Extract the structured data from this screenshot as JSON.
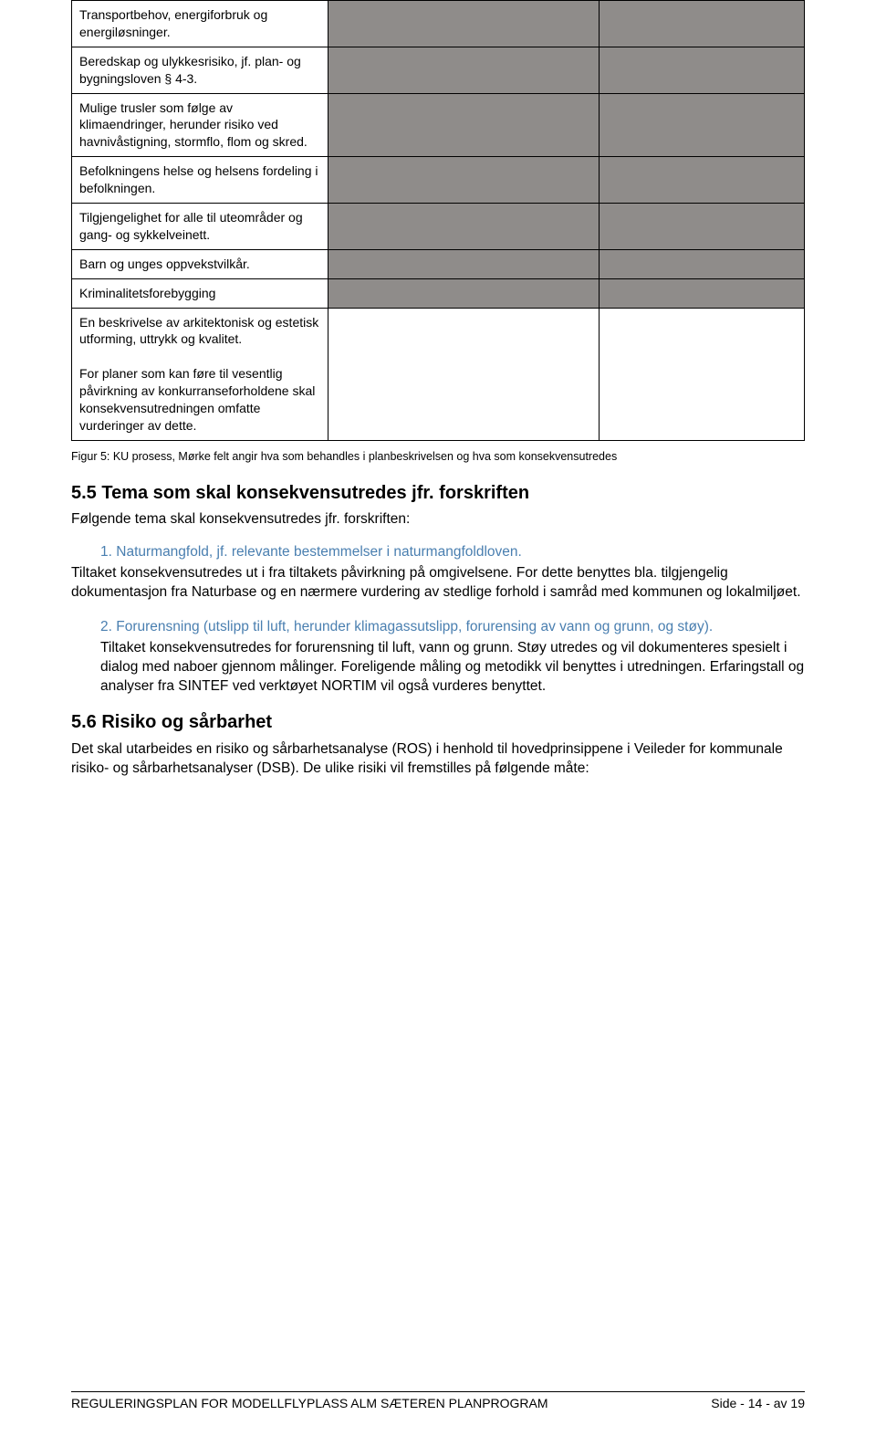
{
  "table": {
    "rows": [
      {
        "col1": "Transportbehov, energiforbruk og energiløsninger.",
        "shaded": true
      },
      {
        "col1": "Beredskap og ulykkesrisiko, jf. plan- og bygningsloven § 4-3.",
        "shaded": true
      },
      {
        "col1": "Mulige trusler som følge av klimaendringer, herunder risiko ved havnivåstigning, stormflo, flom og skred.",
        "shaded": true
      },
      {
        "col1": "Befolkningens helse og helsens fordeling i befolkningen.",
        "shaded": true
      },
      {
        "col1": "Tilgjengelighet for alle til uteområder og gang- og sykkelveinett.",
        "shaded": true
      },
      {
        "col1": "Barn og unges oppvekstvilkår.",
        "shaded": true
      },
      {
        "col1": "Kriminalitetsforebygging",
        "shaded": true
      },
      {
        "col1": "En beskrivelse av arkitektonisk og estetisk utforming, uttrykk og kvalitet.\n\nFor planer som kan føre til vesentlig påvirkning av konkurranseforholdene skal konsekvensutredningen omfatte vurderinger av dette.",
        "shaded": false
      }
    ]
  },
  "caption": "Figur 5: KU prosess, Mørke felt angir hva som behandles i planbeskrivelsen og hva som konsekvensutredes",
  "section55": {
    "heading": "5.5 Tema som skal konsekvensutredes jfr. forskriften",
    "intro": "Følgende tema skal konsekvensutredes jfr. forskriften:",
    "item1_num": "1.",
    "item1_title": "Naturmangfold, jf. relevante bestemmelser i naturmangfoldloven.",
    "item1_body": "Tiltaket konsekvensutredes ut i fra tiltakets påvirkning på omgivelsene. For dette benyttes bla. tilgjengelig dokumentasjon fra Naturbase og en nærmere vurdering av stedlige forhold i samråd med kommunen og lokalmiljøet.",
    "item2_num": "2.",
    "item2_title": "Forurensning (utslipp til luft, herunder klimagassutslipp, forurensing av vann og grunn, og støy).",
    "item2_body": "Tiltaket konsekvensutredes for forurensning til luft, vann og grunn. Støy utredes og vil dokumenteres spesielt i dialog med naboer gjennom målinger. Foreligende måling og metodikk vil benyttes i utredningen. Erfaringstall og analyser fra SINTEF ved verktøyet NORTIM vil også vurderes benyttet."
  },
  "section56": {
    "heading": "5.6 Risiko og sårbarhet",
    "body": "Det skal utarbeides en risiko og sårbarhetsanalyse (ROS) i henhold til hovedprinsippene i Veileder for kommunale risiko- og sårbarhetsanalyser (DSB). De ulike risiki vil fremstilles på følgende måte:"
  },
  "footer": {
    "left": "REGULERINGSPLAN FOR MODELLFLYPLASS ALM SÆTEREN PLANPROGRAM",
    "right": "Side - 14 - av 19"
  },
  "colors": {
    "shaded_bg": "#8f8c8a",
    "link_color": "#4a7fb0",
    "text": "#000000",
    "background": "#ffffff"
  }
}
